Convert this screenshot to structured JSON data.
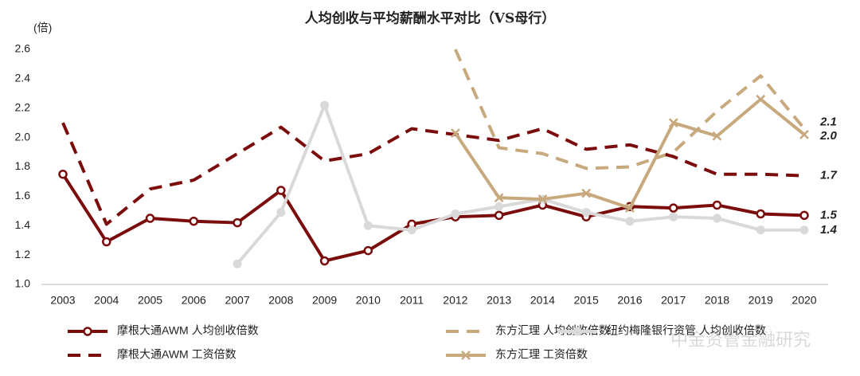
{
  "chart_data": {
    "type": "line",
    "title": "人均创收与平均薪酬水平对比（VS母行）",
    "y_label": "(倍)",
    "watermark": "中金资管金融研究",
    "categories": [
      "2003",
      "2004",
      "2005",
      "2006",
      "2007",
      "2008",
      "2009",
      "2010",
      "2011",
      "2012",
      "2013",
      "2014",
      "2015",
      "2016",
      "2017",
      "2018",
      "2019",
      "2020"
    ],
    "ylim": [
      1.0,
      2.6
    ],
    "yticks": [
      {
        "value": 1.0,
        "label": "1.0"
      },
      1.2,
      1.4,
      1.6,
      1.8,
      {
        "value": 2.0,
        "label": "2.0"
      },
      2.2,
      2.4,
      2.6
    ],
    "series": [
      {
        "name": "摩根大通AWM 人均创收倍数",
        "color": "#7b0c0c",
        "line_style": "solid",
        "marker": "circle",
        "values": [
          1.75,
          1.29,
          1.45,
          1.43,
          1.42,
          1.64,
          1.16,
          1.23,
          1.41,
          1.46,
          1.47,
          1.54,
          1.46,
          1.53,
          1.52,
          1.54,
          1.48,
          1.47
        ],
        "value_labels": [
          null,
          null,
          null,
          null,
          null,
          null,
          null,
          null,
          null,
          null,
          null,
          null,
          null,
          null,
          null,
          null,
          null,
          "1.5"
        ]
      },
      {
        "name": "东方汇理 人均创收倍数",
        "color": "#c8a97e",
        "line_style": "dashed",
        "values": [
          null,
          null,
          null,
          null,
          null,
          null,
          null,
          null,
          null,
          2.6,
          1.93,
          1.89,
          1.79,
          1.8,
          1.9,
          2.18,
          2.42,
          2.06
        ],
        "value_labels": [
          null,
          null,
          null,
          null,
          null,
          null,
          null,
          null,
          null,
          null,
          null,
          null,
          null,
          null,
          null,
          null,
          null,
          "2.1"
        ]
      },
      {
        "name": "纽约梅隆银行资管 人均创收倍数",
        "color": "#d9d9d9",
        "line_style": "solid",
        "marker": "dot",
        "values": [
          null,
          null,
          null,
          null,
          1.14,
          1.49,
          2.22,
          1.4,
          1.37,
          1.48,
          1.53,
          1.58,
          1.49,
          1.43,
          1.46,
          1.45,
          1.37,
          1.37
        ],
        "value_labels": [
          null,
          null,
          null,
          null,
          null,
          null,
          null,
          null,
          null,
          null,
          null,
          null,
          null,
          null,
          null,
          null,
          null,
          "1.4"
        ]
      },
      {
        "name": "摩根大通AWM 工资倍数",
        "color": "#7b0c0c",
        "line_style": "dashed",
        "values": [
          2.1,
          1.41,
          1.65,
          1.71,
          1.89,
          2.07,
          1.84,
          1.89,
          2.06,
          2.02,
          1.98,
          2.06,
          1.92,
          1.95,
          1.87,
          1.75,
          1.75,
          1.74
        ],
        "value_labels": [
          null,
          null,
          null,
          null,
          null,
          null,
          null,
          null,
          null,
          null,
          null,
          null,
          null,
          null,
          null,
          null,
          null,
          "1.7"
        ]
      },
      {
        "name": "东方汇理 工资倍数",
        "color": "#c8a97e",
        "line_style": "solid",
        "marker": "x",
        "values": [
          null,
          null,
          null,
          null,
          null,
          null,
          null,
          null,
          null,
          2.03,
          1.59,
          1.58,
          1.62,
          1.52,
          2.1,
          2.01,
          2.26,
          2.02
        ],
        "value_labels": [
          null,
          null,
          null,
          null,
          null,
          null,
          null,
          null,
          null,
          null,
          null,
          null,
          null,
          null,
          null,
          null,
          null,
          "2.0"
        ]
      }
    ]
  }
}
